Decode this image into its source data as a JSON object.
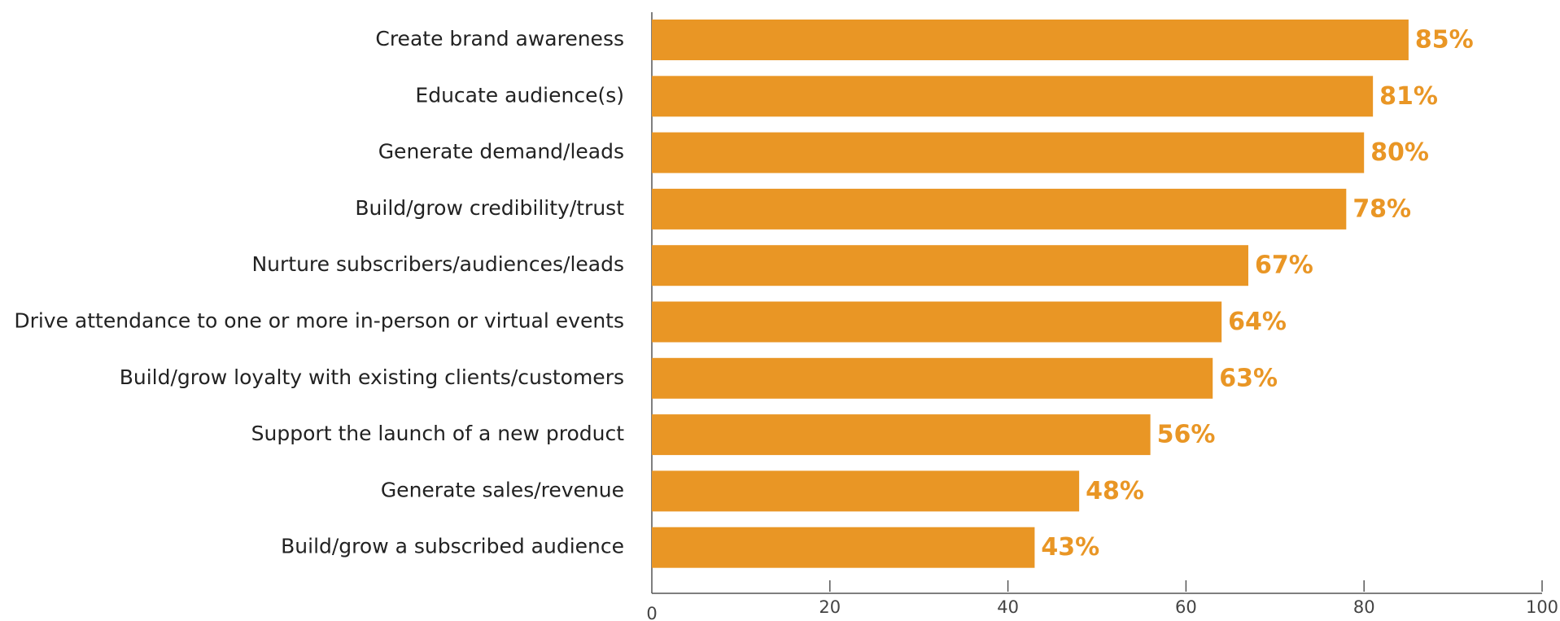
{
  "chart_data": {
    "type": "bar",
    "orientation": "horizontal",
    "categories": [
      "Create brand awareness",
      "Educate audience(s)",
      "Generate demand/leads",
      "Build/grow credibility/trust",
      "Nurture subscribers/audiences/leads",
      "Drive attendance to one or more in-person or virtual events",
      "Build/grow loyalty with existing clients/customers",
      "Support the launch of a new product",
      "Generate sales/revenue",
      "Build/grow a subscribed audience"
    ],
    "values": [
      85,
      81,
      80,
      78,
      67,
      64,
      63,
      56,
      48,
      43
    ],
    "value_labels": [
      "85%",
      "81%",
      "80%",
      "78%",
      "67%",
      "64%",
      "63%",
      "56%",
      "48%",
      "43%"
    ],
    "color": "#e99625",
    "xlim": [
      0,
      100
    ],
    "xticks": [
      0,
      20,
      40,
      60,
      80,
      100
    ]
  }
}
